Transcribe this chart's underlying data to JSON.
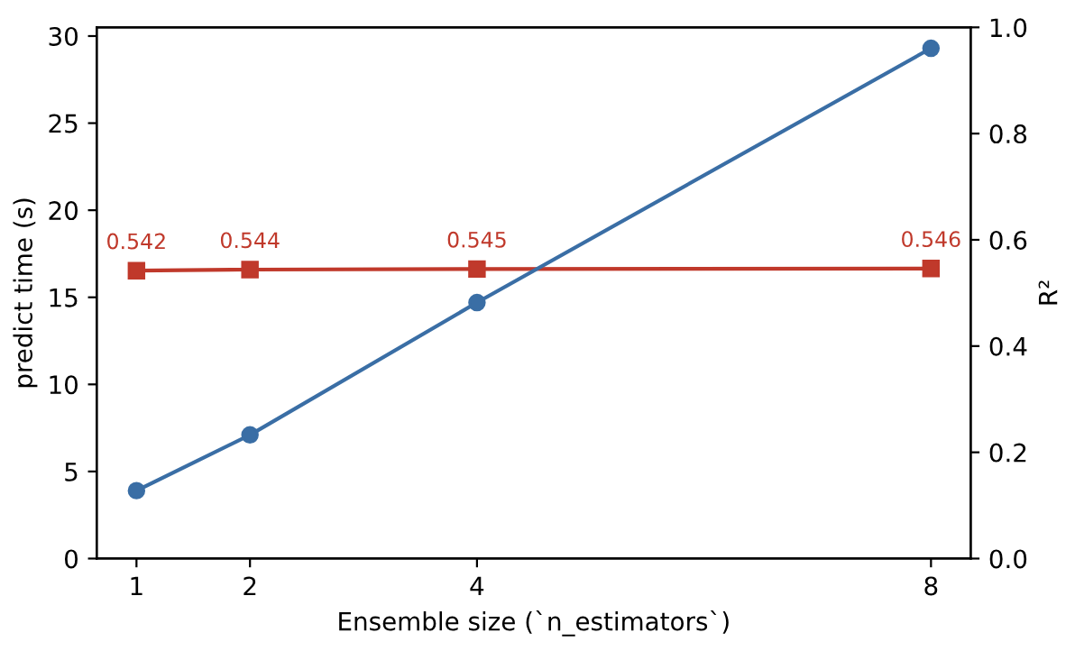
{
  "chart_data": {
    "type": "line",
    "xlabel": "Ensemble size (`n_estimators`)",
    "ylabel": "predict time (s)",
    "y2label": "R²",
    "x": [
      1,
      2,
      4,
      8
    ],
    "series": [
      {
        "color": "#3a6ea5",
        "values": [
          3.9,
          7.1,
          14.7,
          29.3
        ],
        "marker": "circle"
      },
      {
        "color": "#c0392b",
        "values": [
          0.542,
          0.544,
          0.545,
          0.546
        ],
        "marker": "square",
        "axis": "y2",
        "data_labels": true
      }
    ],
    "xlim": [
      0.65,
      8.35
    ],
    "xticks": [
      1,
      2,
      4,
      8
    ],
    "ylim": [
      0,
      30.5
    ],
    "yticks": [
      0,
      5,
      10,
      15,
      20,
      25,
      30
    ],
    "y2lim": [
      0,
      1.0
    ],
    "y2ticks": [
      {
        "value": 0,
        "label": "0.0"
      },
      0.2,
      0.4,
      0.6,
      0.8,
      {
        "value": 1,
        "label": "1.0"
      }
    ],
    "grid": false
  }
}
